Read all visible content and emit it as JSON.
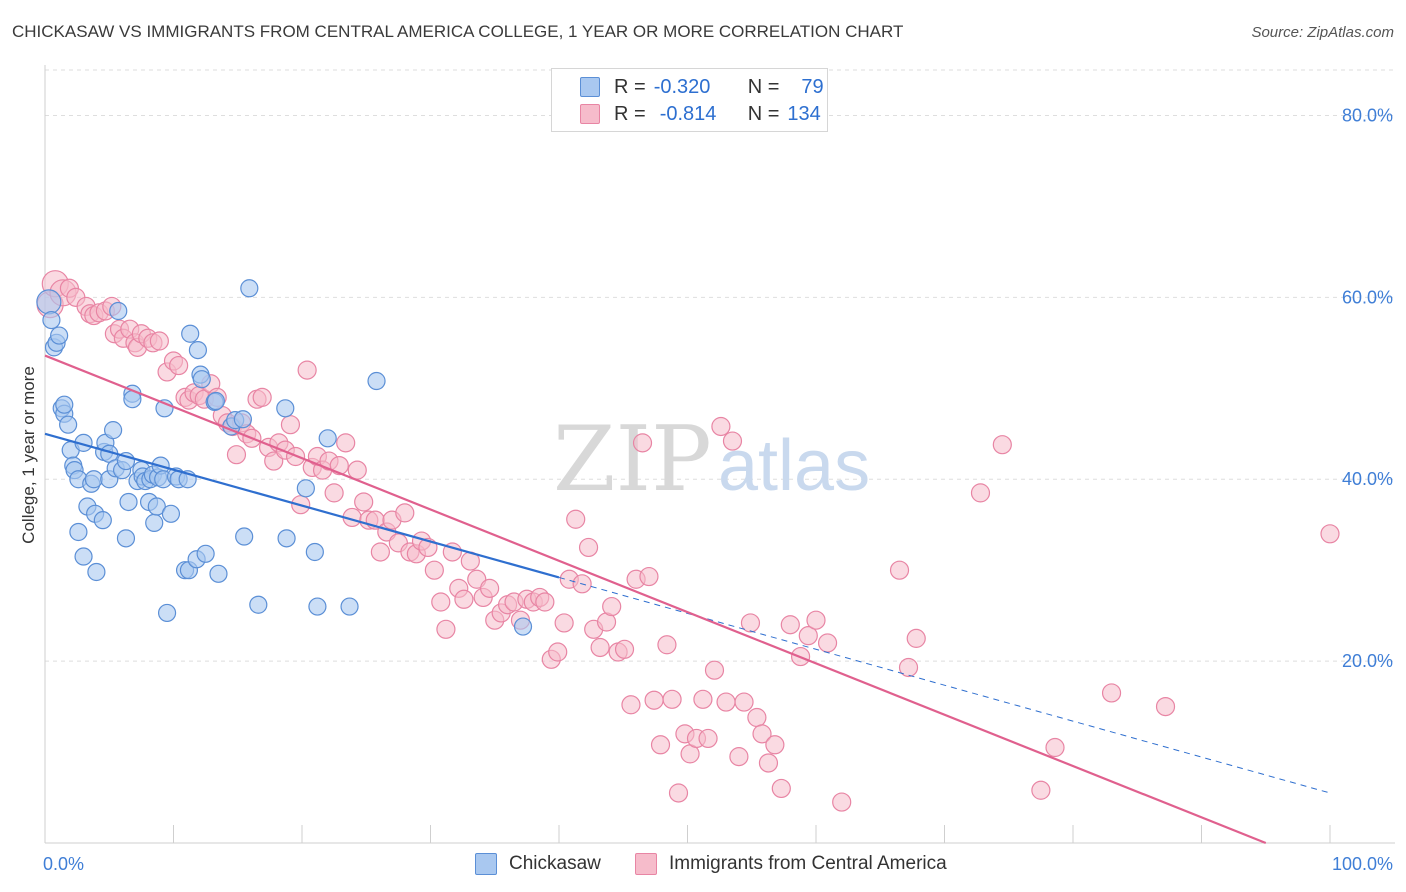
{
  "title": "CHICKASAW VS IMMIGRANTS FROM CENTRAL AMERICA COLLEGE, 1 YEAR OR MORE CORRELATION CHART",
  "source": "Source: ZipAtlas.com",
  "watermark": {
    "zip": "ZIP",
    "atlas": "atlas"
  },
  "legend": {
    "r_label": "R =",
    "n_label": "N =",
    "series1": {
      "r": "-0.320",
      "n": "79"
    },
    "series2": {
      "r": "-0.814",
      "n": "134"
    }
  },
  "colors": {
    "chickasaw_fill": "#a9c8f0",
    "chickasaw_stroke": "#5b8fd6",
    "chickasaw_line": "#2f6fcf",
    "ica_fill": "#f6bccb",
    "ica_stroke": "#e885a4",
    "ica_line": "#e0608e",
    "grid": "#dedede",
    "tick_label": "#3f7ed6"
  },
  "chart_data": {
    "type": "scatter",
    "title": "CHICKASAW VS IMMIGRANTS FROM CENTRAL AMERICA COLLEGE, 1 YEAR OR MORE CORRELATION CHART",
    "xlabel": "",
    "ylabel": "College, 1 year or more",
    "xlim": [
      0,
      100
    ],
    "ylim": [
      0,
      85
    ],
    "x_tick_labels": [
      "0.0%",
      "100.0%"
    ],
    "y_ticks": [
      20,
      40,
      60,
      80
    ],
    "y_tick_labels": [
      "20.0%",
      "40.0%",
      "60.0%",
      "80.0%"
    ],
    "grid": true,
    "legend_position": "top-center",
    "series": [
      {
        "name": "Chickasaw",
        "r": -0.32,
        "n": 79,
        "trend": {
          "x0": 0,
          "y0": 45.0,
          "x1": 40,
          "y1": 29.2,
          "dashed_to_x": 100,
          "dashed_to_y": 5.5
        },
        "points": [
          [
            0.3,
            59.5
          ],
          [
            0.5,
            57.5
          ],
          [
            0.7,
            54.5
          ],
          [
            0.9,
            55.0
          ],
          [
            1.1,
            55.8
          ],
          [
            1.3,
            47.8
          ],
          [
            1.5,
            47.2
          ],
          [
            1.5,
            48.2
          ],
          [
            1.8,
            46.0
          ],
          [
            2.0,
            43.2
          ],
          [
            2.2,
            41.5
          ],
          [
            2.3,
            41.0
          ],
          [
            2.6,
            40.0
          ],
          [
            2.6,
            34.2
          ],
          [
            3.0,
            31.5
          ],
          [
            3.0,
            44.0
          ],
          [
            3.3,
            37.0
          ],
          [
            3.6,
            39.5
          ],
          [
            3.8,
            40.0
          ],
          [
            3.9,
            36.2
          ],
          [
            4.0,
            29.8
          ],
          [
            4.5,
            35.5
          ],
          [
            4.6,
            43.0
          ],
          [
            4.7,
            44.0
          ],
          [
            5.0,
            42.8
          ],
          [
            5.0,
            40.0
          ],
          [
            5.3,
            45.4
          ],
          [
            5.5,
            41.2
          ],
          [
            5.7,
            58.5
          ],
          [
            6.0,
            41.0
          ],
          [
            6.3,
            42.0
          ],
          [
            6.3,
            33.5
          ],
          [
            6.5,
            37.5
          ],
          [
            6.8,
            49.4
          ],
          [
            6.8,
            48.8
          ],
          [
            7.2,
            39.8
          ],
          [
            7.5,
            41.0
          ],
          [
            7.6,
            40.3
          ],
          [
            7.8,
            39.8
          ],
          [
            8.1,
            37.5
          ],
          [
            8.2,
            40.0
          ],
          [
            8.4,
            40.5
          ],
          [
            8.5,
            35.2
          ],
          [
            8.7,
            37.0
          ],
          [
            8.8,
            40.2
          ],
          [
            9.0,
            41.5
          ],
          [
            9.2,
            40.0
          ],
          [
            9.3,
            47.8
          ],
          [
            9.5,
            25.3
          ],
          [
            9.8,
            36.2
          ],
          [
            10.2,
            40.3
          ],
          [
            10.4,
            40.0
          ],
          [
            10.9,
            30.0
          ],
          [
            11.1,
            40.0
          ],
          [
            11.2,
            30.0
          ],
          [
            11.3,
            56.0
          ],
          [
            11.8,
            31.2
          ],
          [
            11.9,
            54.2
          ],
          [
            12.1,
            51.5
          ],
          [
            12.2,
            51.0
          ],
          [
            12.5,
            31.8
          ],
          [
            13.2,
            48.5
          ],
          [
            13.3,
            48.6
          ],
          [
            13.5,
            29.6
          ],
          [
            14.5,
            45.8
          ],
          [
            14.8,
            46.5
          ],
          [
            15.4,
            46.6
          ],
          [
            15.5,
            33.7
          ],
          [
            15.9,
            61.0
          ],
          [
            16.6,
            26.2
          ],
          [
            18.7,
            47.8
          ],
          [
            18.8,
            33.5
          ],
          [
            20.3,
            39.0
          ],
          [
            21.0,
            32.0
          ],
          [
            21.2,
            26.0
          ],
          [
            22.0,
            44.5
          ],
          [
            23.7,
            26.0
          ],
          [
            25.8,
            50.8
          ],
          [
            37.2,
            23.8
          ]
        ]
      },
      {
        "name": "Immigrants from Central America",
        "r": -0.814,
        "n": 134,
        "trend": {
          "x0": 0,
          "y0": 53.6,
          "x1": 95,
          "y1": 0.0
        },
        "points": [
          [
            0.4,
            59.2
          ],
          [
            0.8,
            61.5
          ],
          [
            1.4,
            60.5
          ],
          [
            1.9,
            61.0
          ],
          [
            2.4,
            60.0
          ],
          [
            3.2,
            59.0
          ],
          [
            3.5,
            58.2
          ],
          [
            3.8,
            58.0
          ],
          [
            4.2,
            58.3
          ],
          [
            4.7,
            58.5
          ],
          [
            5.2,
            59.0
          ],
          [
            5.4,
            56.0
          ],
          [
            5.8,
            56.5
          ],
          [
            6.1,
            55.5
          ],
          [
            6.6,
            56.5
          ],
          [
            7.0,
            55.0
          ],
          [
            7.2,
            54.5
          ],
          [
            7.5,
            56.0
          ],
          [
            8.0,
            55.5
          ],
          [
            8.4,
            55.0
          ],
          [
            8.9,
            55.2
          ],
          [
            9.5,
            51.8
          ],
          [
            10.0,
            53.0
          ],
          [
            10.4,
            52.5
          ],
          [
            10.9,
            49.0
          ],
          [
            11.2,
            48.7
          ],
          [
            11.6,
            49.5
          ],
          [
            12.0,
            49.2
          ],
          [
            12.4,
            48.8
          ],
          [
            12.9,
            50.5
          ],
          [
            13.4,
            49.0
          ],
          [
            13.8,
            47.0
          ],
          [
            14.2,
            46.2
          ],
          [
            14.6,
            45.8
          ],
          [
            14.9,
            42.7
          ],
          [
            15.3,
            46.2
          ],
          [
            15.7,
            45.0
          ],
          [
            16.1,
            44.5
          ],
          [
            16.5,
            48.8
          ],
          [
            16.9,
            49.0
          ],
          [
            17.4,
            43.5
          ],
          [
            17.8,
            42.0
          ],
          [
            18.2,
            44.0
          ],
          [
            18.7,
            43.2
          ],
          [
            19.1,
            46.0
          ],
          [
            19.5,
            42.5
          ],
          [
            19.9,
            37.2
          ],
          [
            20.4,
            52.0
          ],
          [
            20.8,
            41.3
          ],
          [
            21.2,
            42.5
          ],
          [
            21.6,
            41.0
          ],
          [
            22.1,
            42.0
          ],
          [
            22.5,
            38.5
          ],
          [
            22.9,
            41.5
          ],
          [
            23.4,
            44.0
          ],
          [
            23.9,
            35.8
          ],
          [
            24.3,
            41.0
          ],
          [
            24.8,
            37.5
          ],
          [
            25.2,
            35.5
          ],
          [
            25.7,
            35.5
          ],
          [
            26.1,
            32.0
          ],
          [
            26.6,
            34.2
          ],
          [
            27.0,
            35.5
          ],
          [
            27.5,
            33.0
          ],
          [
            28.0,
            36.3
          ],
          [
            28.4,
            32.0
          ],
          [
            28.9,
            31.8
          ],
          [
            29.3,
            33.2
          ],
          [
            29.8,
            32.5
          ],
          [
            30.3,
            30.0
          ],
          [
            30.8,
            26.5
          ],
          [
            31.2,
            23.5
          ],
          [
            31.7,
            32.0
          ],
          [
            32.2,
            28.0
          ],
          [
            32.6,
            26.8
          ],
          [
            33.1,
            31.0
          ],
          [
            33.6,
            29.0
          ],
          [
            34.1,
            27.0
          ],
          [
            34.6,
            28.0
          ],
          [
            35.0,
            24.5
          ],
          [
            35.5,
            25.3
          ],
          [
            36.0,
            26.2
          ],
          [
            36.5,
            26.5
          ],
          [
            37.0,
            24.5
          ],
          [
            37.5,
            26.8
          ],
          [
            38.0,
            26.5
          ],
          [
            38.5,
            27.0
          ],
          [
            38.9,
            26.5
          ],
          [
            39.4,
            20.2
          ],
          [
            39.9,
            21.0
          ],
          [
            40.4,
            24.2
          ],
          [
            40.8,
            29.0
          ],
          [
            41.3,
            35.6
          ],
          [
            41.8,
            28.5
          ],
          [
            42.3,
            32.5
          ],
          [
            42.7,
            23.5
          ],
          [
            43.2,
            21.5
          ],
          [
            43.7,
            24.3
          ],
          [
            44.1,
            26.0
          ],
          [
            44.6,
            21.0
          ],
          [
            45.1,
            21.3
          ],
          [
            45.6,
            15.2
          ],
          [
            46.0,
            29.0
          ],
          [
            46.5,
            44.0
          ],
          [
            47.0,
            29.3
          ],
          [
            47.4,
            15.7
          ],
          [
            47.9,
            10.8
          ],
          [
            48.4,
            21.8
          ],
          [
            48.8,
            15.8
          ],
          [
            49.3,
            5.5
          ],
          [
            49.8,
            12.0
          ],
          [
            50.2,
            9.8
          ],
          [
            50.7,
            11.5
          ],
          [
            51.2,
            15.8
          ],
          [
            51.6,
            11.5
          ],
          [
            52.1,
            19.0
          ],
          [
            52.6,
            45.8
          ],
          [
            53.0,
            15.5
          ],
          [
            53.5,
            44.2
          ],
          [
            54.0,
            9.5
          ],
          [
            54.4,
            15.5
          ],
          [
            54.9,
            24.2
          ],
          [
            55.4,
            13.8
          ],
          [
            55.8,
            12.0
          ],
          [
            56.3,
            8.8
          ],
          [
            56.8,
            10.8
          ],
          [
            57.3,
            6.0
          ],
          [
            58.0,
            24.0
          ],
          [
            58.8,
            20.5
          ],
          [
            59.4,
            22.8
          ],
          [
            60.0,
            24.5
          ],
          [
            60.9,
            22.0
          ],
          [
            62.0,
            4.5
          ],
          [
            66.5,
            30.0
          ],
          [
            67.2,
            19.3
          ],
          [
            67.8,
            22.5
          ],
          [
            72.8,
            38.5
          ],
          [
            74.5,
            43.8
          ],
          [
            77.5,
            5.8
          ],
          [
            78.6,
            10.5
          ],
          [
            83.0,
            16.5
          ],
          [
            87.2,
            15.0
          ],
          [
            100.0,
            34.0
          ]
        ]
      }
    ]
  },
  "bottom_legend": {
    "series1_label": "Chickasaw",
    "series2_label": "Immigrants from Central America"
  }
}
